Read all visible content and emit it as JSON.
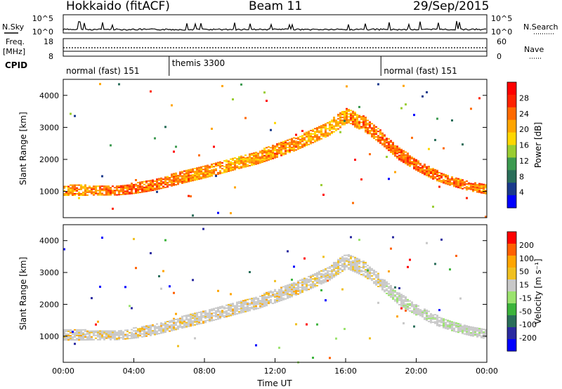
{
  "header": {
    "radar": "Hokkaido (fitACF)",
    "beam": "Beam 11",
    "date": "29/Sep/2015"
  },
  "top_panels": {
    "nsky_label": "N.Sky",
    "nsky_ticks": [
      "10^5",
      "10^0"
    ],
    "nsearch_label": "N.Search",
    "nsearch_ticks": [
      "10^5",
      "10^0"
    ],
    "freq_label_line1": "Freq.",
    "freq_label_line2": "[MHz]",
    "freq_ticks": [
      "18",
      "8"
    ],
    "nave_label": "Nave",
    "nave_ticks": [
      "60",
      "0"
    ],
    "cpid_label": "CPID"
  },
  "cpid_segments": [
    {
      "label": "normal (fast) 151",
      "start_hour": 0,
      "end_hour": 6
    },
    {
      "label": "themis 3300",
      "start_hour": 6,
      "end_hour": 18
    },
    {
      "label": "normal (fast) 151",
      "start_hour": 18,
      "end_hour": 24
    }
  ],
  "colors": {
    "power_scale": [
      "#0000ff",
      "#1a3a8c",
      "#2a6e5a",
      "#3c9a50",
      "#9acd32",
      "#ffd700",
      "#ffa500",
      "#ff6a00",
      "#ff2200",
      "#ff0000"
    ],
    "velocity_scale": [
      "#0000ff",
      "#2a2aa0",
      "#2a6e5a",
      "#3cb43c",
      "#9be36e",
      "#c8c8c8",
      "#f0c020",
      "#ffa500",
      "#ff6000",
      "#ff0000"
    ]
  },
  "chart_data": [
    {
      "type": "heatmap",
      "title": "Power",
      "xlabel": "Time UT",
      "ylabel": "Slant Range [km]",
      "x_tick_labels": [
        "00:00",
        "04:00",
        "08:00",
        "12:00",
        "16:00",
        "20:00",
        "00:00"
      ],
      "xlim_hours": [
        0,
        24
      ],
      "y_ticks": [
        1000,
        2000,
        3000,
        4000
      ],
      "ylim_km": [
        180,
        4500
      ],
      "colorbar_label": "Power [dB]",
      "colorbar_ticks": [
        "28",
        "24",
        "20",
        "16",
        "12",
        "8",
        "4"
      ],
      "colorbar_range": [
        0,
        32
      ],
      "bands": [
        {
          "name": "near-range",
          "times": [
            0,
            1,
            2,
            3,
            4,
            5,
            6,
            7,
            8,
            9,
            10,
            11,
            12,
            13,
            14,
            15,
            16,
            17,
            18,
            19,
            20,
            21,
            22,
            23,
            24
          ],
          "centers": [
            1020,
            1020,
            1020,
            1020,
            1080,
            1180,
            1320,
            1470,
            1600,
            1750,
            1900,
            2050,
            2250,
            2450,
            2700,
            2950,
            3350,
            3100,
            2650,
            2150,
            1800,
            1500,
            1300,
            1150,
            1050
          ],
          "widths": [
            320,
            320,
            300,
            300,
            320,
            340,
            360,
            380,
            380,
            380,
            380,
            400,
            420,
            420,
            440,
            440,
            480,
            460,
            400,
            380,
            340,
            320,
            300,
            300,
            300
          ],
          "power": [
            22,
            23,
            24,
            25,
            25,
            24,
            24,
            23,
            22,
            22,
            21,
            22,
            23,
            23,
            22,
            21,
            22,
            24,
            24,
            25,
            25,
            24,
            24,
            24,
            23
          ]
        }
      ]
    },
    {
      "type": "heatmap",
      "title": "Velocity",
      "xlabel": "Time UT",
      "ylabel": "Slant Range [km]",
      "x_tick_labels": [
        "00:00",
        "04:00",
        "08:00",
        "12:00",
        "16:00",
        "20:00",
        "00:00"
      ],
      "xlim_hours": [
        0,
        24
      ],
      "y_ticks": [
        1000,
        2000,
        3000,
        4000
      ],
      "ylim_km": [
        180,
        4500
      ],
      "colorbar_label": "Velocity [m s⁻¹]",
      "colorbar_ticks": [
        "200",
        "100",
        "50",
        "15",
        "-15",
        "-50",
        "-100",
        "-200"
      ],
      "colorbar_range": [
        -250,
        250
      ]
    }
  ]
}
